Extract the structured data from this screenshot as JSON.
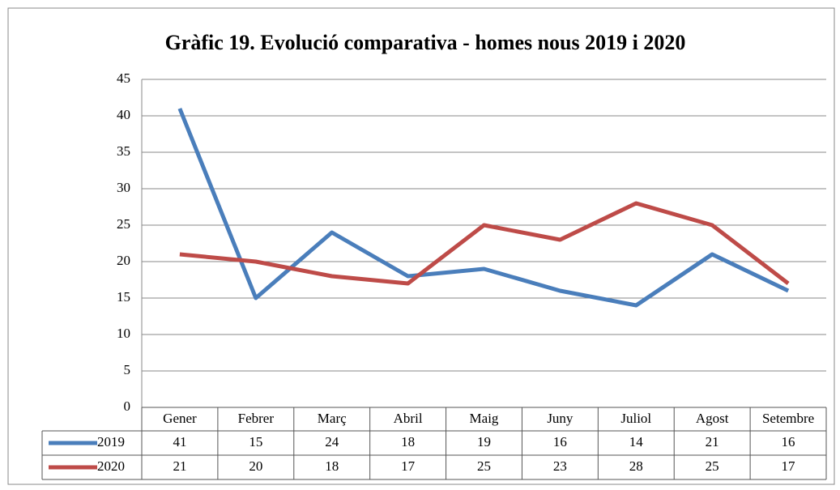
{
  "chart_data": {
    "type": "line",
    "title": "Gràfic 19. Evolució comparativa - homes nous 2019 i 2020",
    "categories": [
      "Gener",
      "Febrer",
      "Març",
      "Abril",
      "Maig",
      "Juny",
      "Juliol",
      "Agost",
      "Setembre"
    ],
    "series": [
      {
        "name": "2019",
        "color": "#4a7ebb",
        "values": [
          41,
          15,
          24,
          18,
          19,
          16,
          14,
          21,
          16
        ]
      },
      {
        "name": "2020",
        "color": "#be4b48",
        "values": [
          21,
          20,
          18,
          17,
          25,
          23,
          28,
          25,
          17
        ]
      }
    ],
    "ylim": [
      0,
      45
    ],
    "yticks": [
      0,
      5,
      10,
      15,
      20,
      25,
      30,
      35,
      40,
      45
    ],
    "grid": true,
    "data_table": true
  }
}
